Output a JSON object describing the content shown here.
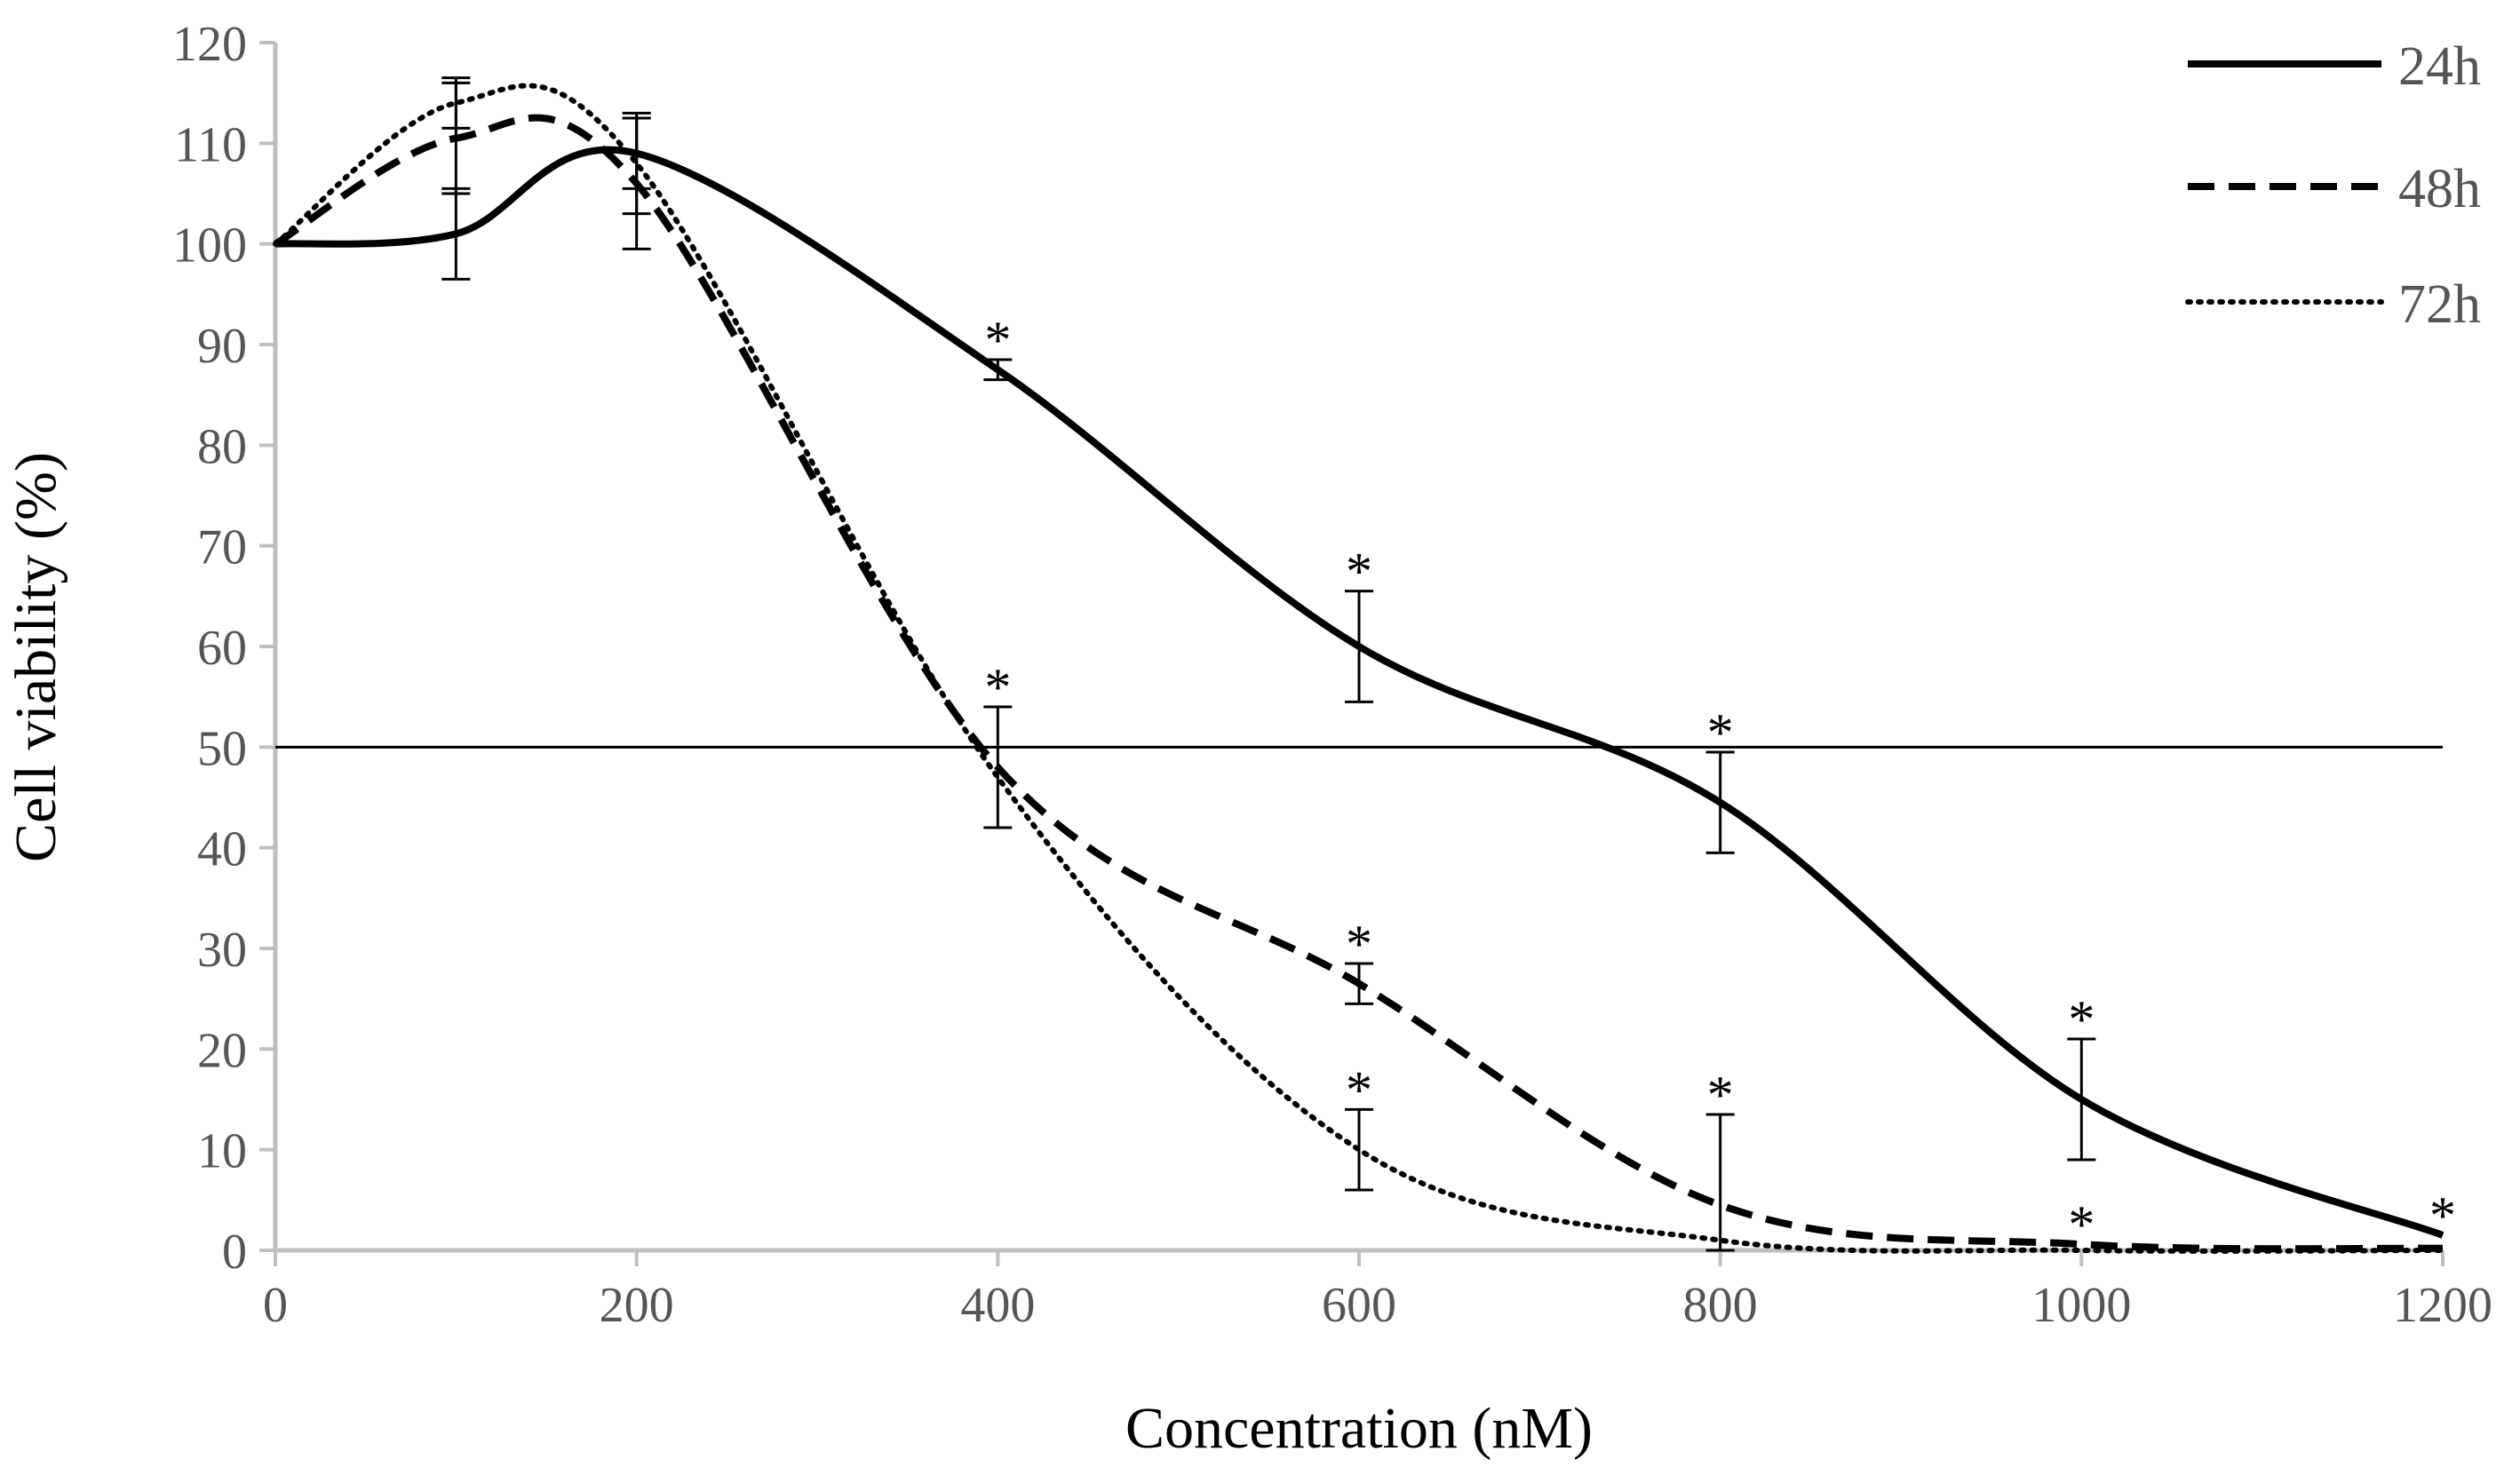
{
  "chart_data": {
    "type": "line",
    "title": "",
    "xlabel": "Concentration (nM)",
    "ylabel": "Cell viability (%)",
    "xlim": [
      0,
      1200
    ],
    "ylim": [
      0,
      120
    ],
    "xticks": [
      0,
      200,
      400,
      600,
      800,
      1000,
      1200
    ],
    "yticks": [
      0,
      10,
      20,
      30,
      40,
      50,
      60,
      70,
      80,
      90,
      100,
      110,
      120
    ],
    "x": [
      0,
      100,
      200,
      400,
      600,
      800,
      1000,
      1200
    ],
    "reference_line": 50,
    "legend_position": "top-right",
    "significance_marker": "*",
    "series": [
      {
        "name": "24h",
        "style": "solid",
        "color": "#000000",
        "values": [
          100,
          101,
          109,
          87.5,
          60,
          44.5,
          15,
          1.5
        ],
        "errors": [
          0,
          4.5,
          3.5,
          1,
          5.5,
          5,
          6,
          0
        ],
        "significant": [
          false,
          false,
          false,
          true,
          true,
          true,
          true,
          true
        ]
      },
      {
        "name": "48h",
        "style": "dashed",
        "color": "#000000",
        "values": [
          100,
          110.5,
          106,
          48,
          26.5,
          4.5,
          0.6,
          0.2
        ],
        "errors": [
          0,
          5.5,
          6.5,
          6,
          2,
          9,
          0,
          0
        ],
        "significant": [
          false,
          false,
          false,
          true,
          true,
          true,
          true,
          false
        ]
      },
      {
        "name": "72h",
        "style": "dotted",
        "color": "#000000",
        "values": [
          100,
          114,
          108,
          47,
          10,
          1,
          0,
          0
        ],
        "errors": [
          0,
          2.5,
          5,
          0,
          4,
          0,
          0,
          0
        ],
        "significant": [
          false,
          false,
          false,
          false,
          true,
          false,
          false,
          false
        ]
      }
    ]
  }
}
